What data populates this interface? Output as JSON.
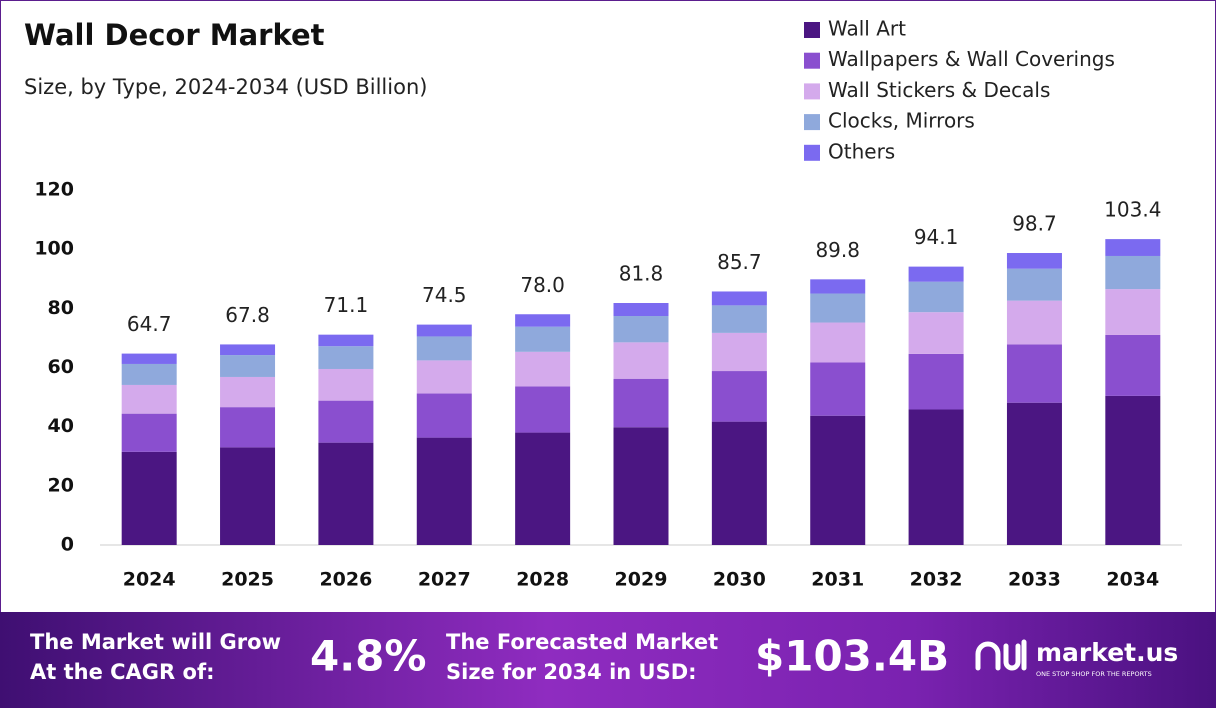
{
  "chart_data": {
    "type": "stacked-bar",
    "title": "Wall Decor Market",
    "subtitle": "Size, by Type, 2024-2034 (USD Billion)",
    "categories": [
      "2024",
      "2025",
      "2026",
      "2027",
      "2028",
      "2029",
      "2030",
      "2031",
      "2032",
      "2033",
      "2034"
    ],
    "series": [
      {
        "name": "Wall Art",
        "color": "#4b1682",
        "values": [
          31.5,
          33.0,
          34.6,
          36.3,
          38.0,
          39.8,
          41.7,
          43.7,
          45.8,
          48.1,
          50.4
        ]
      },
      {
        "name": "Wallpapers & Wall Coverings",
        "color": "#8a4fcf",
        "values": [
          12.9,
          13.6,
          14.2,
          14.9,
          15.6,
          16.4,
          17.1,
          18.0,
          18.8,
          19.7,
          20.6
        ]
      },
      {
        "name": "Wall Stickers & Decals",
        "color": "#d4aaec",
        "values": [
          9.7,
          10.2,
          10.7,
          11.2,
          11.7,
          12.3,
          12.9,
          13.5,
          14.1,
          14.8,
          15.5
        ]
      },
      {
        "name": "Clocks, Mirrors",
        "color": "#8fa9dc",
        "values": [
          7.1,
          7.4,
          7.7,
          8.1,
          8.5,
          8.9,
          9.3,
          9.8,
          10.3,
          10.8,
          11.2
        ]
      },
      {
        "name": "Others",
        "color": "#7b6af0",
        "values": [
          3.5,
          3.6,
          3.9,
          4.0,
          4.2,
          4.4,
          4.7,
          4.8,
          5.1,
          5.3,
          5.7
        ]
      }
    ],
    "totals": {
      "values": [
        64.7,
        67.8,
        71.1,
        74.5,
        78.0,
        81.8,
        85.7,
        89.8,
        94.1,
        98.7,
        103.4
      ],
      "value_labels": [
        "64.7",
        "67.8",
        "71.1",
        "74.5",
        "78.0",
        "81.8",
        "85.7",
        "89.8",
        "94.1",
        "98.7",
        "103.4"
      ]
    },
    "ylim": [
      0,
      120
    ],
    "yticks": [
      0,
      20,
      40,
      60,
      80,
      100,
      120
    ],
    "grid": false
  },
  "footer": {
    "cagr_text_1": "The Market will Grow",
    "cagr_text_2": "At the CAGR of:",
    "cagr_value": "4.8%",
    "forecast_text_1": "The Forecasted Market",
    "forecast_text_2": "Size for 2034 in USD:",
    "forecast_value": "$103.4B",
    "brand": "market.us",
    "tagline": "ONE STOP SHOP FOR THE REPORTS"
  }
}
